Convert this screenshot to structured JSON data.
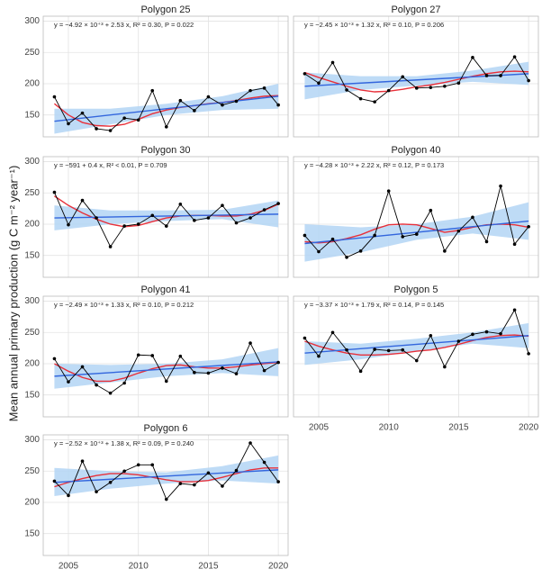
{
  "ylabel": "Mean annual primary production (g C m⁻² year⁻¹)",
  "chart_data": [
    {
      "type": "line",
      "title": "Polygon 25",
      "annotation": "y = −4.92 × 10⁺³ + 2.53 x, R² = 0.30, P = 0.022",
      "x": [
        2004,
        2005,
        2006,
        2007,
        2008,
        2009,
        2010,
        2011,
        2012,
        2013,
        2014,
        2015,
        2016,
        2017,
        2018,
        2019,
        2020
      ],
      "series": [
        {
          "color": "#e8303a",
          "values": [
            168,
            150,
            138,
            133,
            132,
            135,
            143,
            152,
            158,
            162,
            165,
            168,
            170,
            173,
            177,
            180,
            181
          ]
        },
        {
          "color": "#3366dd",
          "x": [
            2004,
            2020
          ],
          "values": [
            140,
            180
          ]
        },
        {
          "color": "#000000",
          "marker": true,
          "values": [
            179,
            136,
            153,
            128,
            125,
            145,
            142,
            189,
            131,
            173,
            157,
            179,
            166,
            172,
            189,
            193,
            166
          ]
        }
      ],
      "band": {
        "color": "#b3d5f5",
        "x": [
          2004,
          2008,
          2012,
          2016,
          2020
        ],
        "lower": [
          120,
          135,
          150,
          158,
          160
        ],
        "upper": [
          160,
          160,
          168,
          180,
          200
        ]
      },
      "xlim": [
        2003.2,
        2020.7
      ],
      "ylim": [
        115,
        308
      ],
      "xticks": [
        2005,
        2010,
        2015,
        2020
      ],
      "yticks": [
        150,
        200,
        250,
        300
      ],
      "grid": true
    },
    {
      "type": "line",
      "title": "Polygon 27",
      "annotation": "y = −2.45 × 10⁺³ + 1.32 x, R² = 0.10, P = 0.206",
      "x": [
        2004,
        2005,
        2006,
        2007,
        2008,
        2009,
        2010,
        2011,
        2012,
        2013,
        2014,
        2015,
        2016,
        2017,
        2018,
        2019,
        2020
      ],
      "series": [
        {
          "color": "#e8303a",
          "values": [
            218,
            210,
            203,
            196,
            190,
            187,
            188,
            191,
            195,
            198,
            202,
            207,
            212,
            216,
            219,
            220,
            219
          ]
        },
        {
          "color": "#3366dd",
          "x": [
            2004,
            2020
          ],
          "values": [
            196,
            216
          ]
        },
        {
          "color": "#000000",
          "marker": true,
          "values": [
            216,
            201,
            234,
            190,
            176,
            171,
            189,
            211,
            193,
            194,
            196,
            201,
            242,
            213,
            213,
            243,
            205
          ]
        }
      ],
      "band": {
        "color": "#b3d5f5",
        "x": [
          2004,
          2008,
          2012,
          2016,
          2020
        ],
        "lower": [
          175,
          190,
          197,
          203,
          198
        ],
        "upper": [
          218,
          212,
          212,
          221,
          235
        ]
      },
      "xlim": [
        2003.2,
        2020.7
      ],
      "ylim": [
        115,
        308
      ],
      "xticks": [
        2005,
        2010,
        2015,
        2020
      ],
      "yticks": [
        150,
        200,
        250,
        300
      ],
      "grid": true
    },
    {
      "type": "line",
      "title": "Polygon 30",
      "annotation": "y = −591 + 0.4 x, R² < 0.01, P = 0.709",
      "x": [
        2004,
        2005,
        2006,
        2007,
        2008,
        2009,
        2010,
        2011,
        2012,
        2013,
        2014,
        2015,
        2016,
        2017,
        2018,
        2019,
        2020
      ],
      "series": [
        {
          "color": "#e8303a",
          "values": [
            245,
            230,
            218,
            208,
            200,
            196,
            198,
            204,
            210,
            213,
            214,
            214,
            213,
            213,
            216,
            222,
            232
          ]
        },
        {
          "color": "#3366dd",
          "x": [
            2004,
            2020
          ],
          "values": [
            210,
            216
          ]
        },
        {
          "color": "#000000",
          "marker": true,
          "values": [
            251,
            199,
            238,
            210,
            164,
            197,
            200,
            214,
            197,
            232,
            206,
            210,
            230,
            202,
            210,
            223,
            233
          ]
        }
      ],
      "band": {
        "color": "#b3d5f5",
        "x": [
          2004,
          2008,
          2012,
          2016,
          2020
        ],
        "lower": [
          190,
          200,
          205,
          208,
          195
        ],
        "upper": [
          230,
          222,
          222,
          223,
          238
        ]
      },
      "xlim": [
        2003.2,
        2020.7
      ],
      "ylim": [
        115,
        308
      ],
      "xticks": [
        2005,
        2010,
        2015,
        2020
      ],
      "yticks": [
        150,
        200,
        250,
        300
      ],
      "grid": true
    },
    {
      "type": "line",
      "title": "Polygon 40",
      "annotation": "y = −4.28 × 10⁺³ + 2.22 x, R² = 0.12, P = 0.173",
      "x": [
        2004,
        2005,
        2006,
        2007,
        2008,
        2009,
        2010,
        2011,
        2012,
        2013,
        2014,
        2015,
        2016,
        2017,
        2018,
        2019,
        2020
      ],
      "series": [
        {
          "color": "#e8303a",
          "values": [
            172,
            170,
            172,
            177,
            183,
            192,
            199,
            200,
            199,
            193,
            187,
            190,
            195,
            199,
            200,
            199,
            195
          ]
        },
        {
          "color": "#3366dd",
          "x": [
            2004,
            2020
          ],
          "values": [
            169,
            205
          ]
        },
        {
          "color": "#000000",
          "marker": true,
          "values": [
            182,
            156,
            176,
            147,
            157,
            182,
            253,
            180,
            184,
            222,
            157,
            189,
            211,
            172,
            261,
            168,
            196
          ]
        }
      ],
      "band": {
        "color": "#b3d5f5",
        "x": [
          2004,
          2008,
          2012,
          2016,
          2020
        ],
        "lower": [
          140,
          155,
          175,
          185,
          175
        ],
        "upper": [
          200,
          195,
          200,
          212,
          235
        ]
      },
      "xlim": [
        2003.2,
        2020.7
      ],
      "ylim": [
        115,
        308
      ],
      "xticks": [
        2005,
        2010,
        2015,
        2020
      ],
      "yticks": [
        150,
        200,
        250,
        300
      ],
      "grid": true
    },
    {
      "type": "line",
      "title": "Polygon 41",
      "annotation": "y = −2.49 × 10⁺³ + 1.33 x, R² = 0.10, P = 0.212",
      "x": [
        2004,
        2005,
        2006,
        2007,
        2008,
        2009,
        2010,
        2011,
        2012,
        2013,
        2014,
        2015,
        2016,
        2017,
        2018,
        2019,
        2020
      ],
      "series": [
        {
          "color": "#e8303a",
          "values": [
            200,
            188,
            178,
            172,
            172,
            177,
            185,
            192,
            197,
            198,
            195,
            193,
            193,
            195,
            198,
            200,
            202
          ]
        },
        {
          "color": "#3366dd",
          "x": [
            2004,
            2020
          ],
          "values": [
            180,
            203
          ]
        },
        {
          "color": "#000000",
          "marker": true,
          "values": [
            208,
            171,
            195,
            166,
            153,
            169,
            214,
            213,
            172,
            212,
            186,
            185,
            193,
            184,
            233,
            189,
            202
          ]
        }
      ],
      "band": {
        "color": "#b3d5f5",
        "x": [
          2004,
          2008,
          2012,
          2016,
          2020
        ],
        "lower": [
          160,
          170,
          180,
          185,
          180
        ],
        "upper": [
          200,
          198,
          200,
          207,
          225
        ]
      },
      "xlim": [
        2003.2,
        2020.7
      ],
      "ylim": [
        115,
        308
      ],
      "xticks": [
        2005,
        2010,
        2015,
        2020
      ],
      "yticks": [
        150,
        200,
        250,
        300
      ],
      "grid": true
    },
    {
      "type": "line",
      "title": "Polygon 5",
      "annotation": "y = −3.37 × 10⁺³ + 1.79 x, R² = 0.14, P = 0.145",
      "x": [
        2004,
        2005,
        2006,
        2007,
        2008,
        2009,
        2010,
        2011,
        2012,
        2013,
        2014,
        2015,
        2016,
        2017,
        2018,
        2019,
        2020
      ],
      "series": [
        {
          "color": "#e8303a",
          "values": [
            236,
            228,
            222,
            217,
            214,
            214,
            215,
            217,
            220,
            222,
            226,
            231,
            237,
            242,
            245,
            246,
            244
          ]
        },
        {
          "color": "#3366dd",
          "x": [
            2004,
            2020
          ],
          "values": [
            217,
            245
          ]
        },
        {
          "color": "#000000",
          "marker": true,
          "values": [
            241,
            212,
            250,
            222,
            188,
            223,
            221,
            222,
            205,
            245,
            195,
            236,
            247,
            251,
            248,
            286,
            216
          ]
        }
      ],
      "band": {
        "color": "#b3d5f5",
        "x": [
          2004,
          2008,
          2012,
          2016,
          2020
        ],
        "lower": [
          198,
          207,
          220,
          232,
          225
        ],
        "upper": [
          236,
          232,
          240,
          250,
          265
        ]
      },
      "xlim": [
        2003.2,
        2020.7
      ],
      "ylim": [
        115,
        308
      ],
      "xticks": [
        2005,
        2010,
        2015,
        2020
      ],
      "yticks": [
        150,
        200,
        250,
        300
      ],
      "grid": true
    },
    {
      "type": "line",
      "title": "Polygon 6",
      "annotation": "y = −2.52 × 10⁺³ + 1.38 x, R² = 0.09, P = 0.240",
      "x": [
        2004,
        2005,
        2006,
        2007,
        2008,
        2009,
        2010,
        2011,
        2012,
        2013,
        2014,
        2015,
        2016,
        2017,
        2018,
        2019,
        2020
      ],
      "series": [
        {
          "color": "#e8303a",
          "values": [
            225,
            232,
            238,
            243,
            246,
            246,
            244,
            240,
            236,
            233,
            233,
            235,
            240,
            246,
            252,
            255,
            255
          ]
        },
        {
          "color": "#3366dd",
          "x": [
            2004,
            2020
          ],
          "values": [
            232,
            252
          ]
        },
        {
          "color": "#000000",
          "marker": true,
          "values": [
            234,
            211,
            266,
            217,
            232,
            250,
            260,
            260,
            205,
            230,
            228,
            247,
            226,
            251,
            295,
            264,
            233
          ]
        }
      ],
      "band": {
        "color": "#b3d5f5",
        "x": [
          2004,
          2008,
          2012,
          2016,
          2020
        ],
        "lower": [
          210,
          222,
          230,
          235,
          230
        ],
        "upper": [
          255,
          250,
          248,
          258,
          275
        ]
      },
      "xlim": [
        2003.2,
        2020.7
      ],
      "ylim": [
        115,
        308
      ],
      "xticks": [
        2005,
        2010,
        2015,
        2020
      ],
      "yticks": [
        150,
        200,
        250,
        300
      ],
      "grid": true
    }
  ]
}
